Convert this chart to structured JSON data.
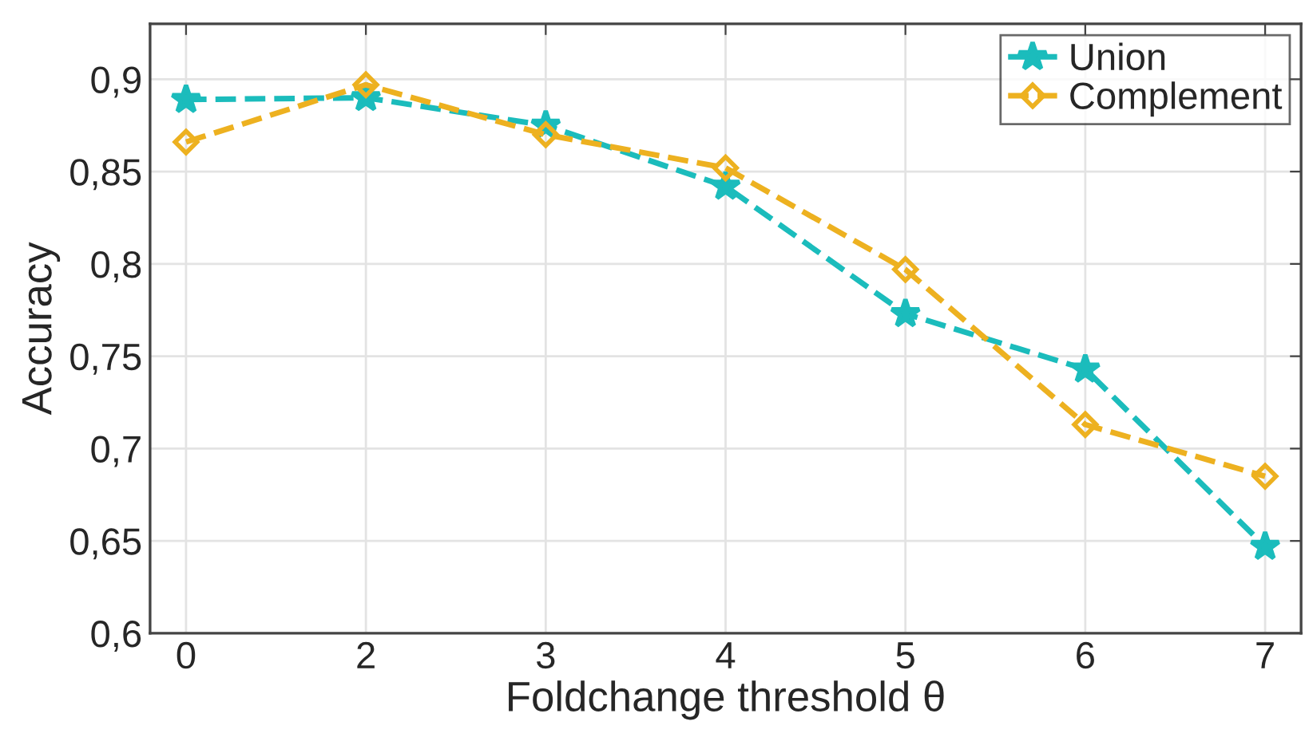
{
  "chart_data": {
    "type": "line",
    "xlabel": "Foldchange threshold θ",
    "ylabel": "Accuracy",
    "categories": [
      "0",
      "2",
      "3",
      "4",
      "5",
      "6",
      "7"
    ],
    "series": [
      {
        "name": "Union",
        "color": "#1bbcbc",
        "marker": "star",
        "values": [
          0.889,
          0.89,
          0.875,
          0.842,
          0.773,
          0.743,
          0.647
        ]
      },
      {
        "name": "Complement",
        "color": "#edb120",
        "marker": "diamond",
        "values": [
          0.866,
          0.897,
          0.87,
          0.852,
          0.797,
          0.713,
          0.685
        ]
      }
    ],
    "ylim": [
      0.6,
      0.93
    ],
    "yticks": [
      {
        "value": 0.6,
        "label": "0,6"
      },
      {
        "value": 0.65,
        "label": "0,65"
      },
      {
        "value": 0.7,
        "label": "0,7"
      },
      {
        "value": 0.75,
        "label": "0,75"
      },
      {
        "value": 0.8,
        "label": "0,8"
      },
      {
        "value": 0.85,
        "label": "0,85"
      },
      {
        "value": 0.9,
        "label": "0,9"
      }
    ],
    "grid": true,
    "legend": "top right",
    "line_style": "dashed"
  }
}
